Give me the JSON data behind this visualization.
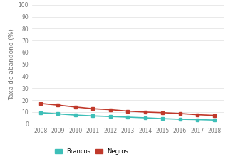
{
  "years": [
    2008,
    2009,
    2010,
    2011,
    2012,
    2013,
    2014,
    2015,
    2016,
    2017,
    2018
  ],
  "brancos": [
    9.5,
    8.5,
    7.5,
    6.8,
    6.3,
    5.8,
    5.2,
    4.5,
    4.0,
    3.7,
    3.3
  ],
  "negros": [
    17.2,
    15.8,
    14.2,
    12.8,
    12.0,
    10.8,
    10.0,
    9.5,
    8.8,
    7.8,
    7.2
  ],
  "brancos_color": "#3dbfb8",
  "negros_color": "#c0392b",
  "ylabel": "Taxa de abandono (%)",
  "ylim": [
    0,
    100
  ],
  "yticks": [
    0,
    10,
    20,
    30,
    40,
    50,
    60,
    70,
    80,
    90,
    100
  ],
  "legend_brancos": "Brancos",
  "legend_negros": "Negros",
  "grid_color": "#e0e0e0",
  "background_color": "#ffffff",
  "marker": "s",
  "marker_size": 2.5,
  "linewidth": 1.2,
  "tick_fontsize": 5.5,
  "ylabel_fontsize": 6.5
}
